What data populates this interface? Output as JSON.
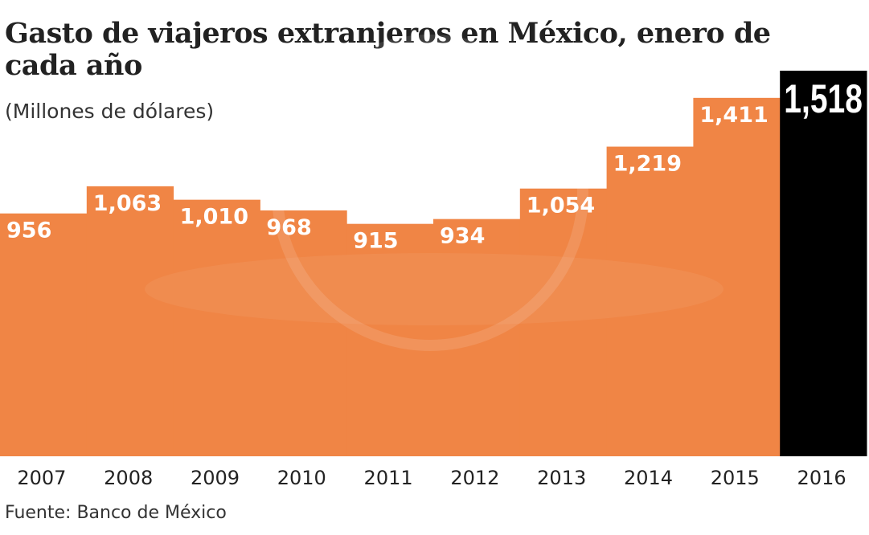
{
  "chart_data": {
    "type": "bar",
    "title": "Gasto de viajeros extranjeros en México, enero de cada año",
    "subtitle": "(Millones de dólares)",
    "source": "Fuente: Banco de México",
    "categories": [
      "2007",
      "2008",
      "2009",
      "2010",
      "2011",
      "2012",
      "2013",
      "2014",
      "2015",
      "2016"
    ],
    "values": [
      956,
      1063,
      1010,
      968,
      915,
      934,
      1054,
      1219,
      1411,
      1518
    ],
    "data_labels": [
      "956",
      "1,063",
      "1,010",
      "968",
      "915",
      "934",
      "1,054",
      "1,219",
      "1,411",
      "1,518"
    ],
    "ylim": [
      0,
      1518
    ],
    "grid": false,
    "colors": {
      "bar": "#F08545",
      "highlight": "#000000",
      "label": "#FFFFFF"
    },
    "highlight_index": 9
  }
}
